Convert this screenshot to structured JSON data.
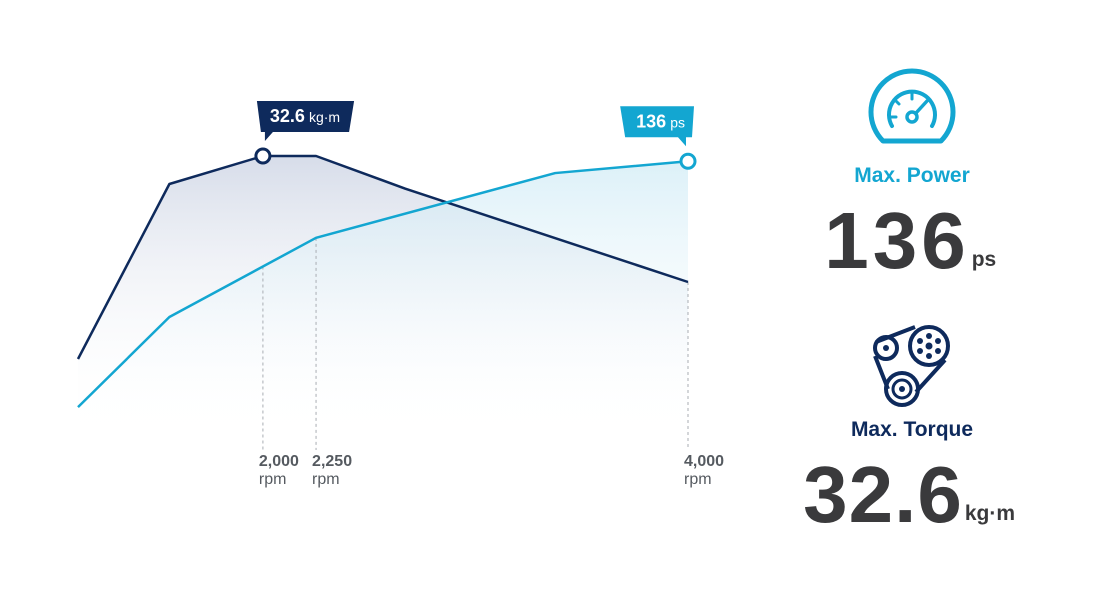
{
  "chart_data": {
    "type": "line",
    "xlim": [
      1130,
      4000
    ],
    "xticks": [
      {
        "value": 2000,
        "label": "2,000"
      },
      {
        "value": 2250,
        "label": "2,250"
      },
      {
        "value": 4000,
        "label": "4,000"
      }
    ],
    "x_unit": "rpm",
    "ylim": [
      20,
      35
    ],
    "y2lim": [
      70,
      150
    ],
    "series": [
      {
        "name": "Max. Torque",
        "unit": "kg·m",
        "max": 32.6,
        "color": "#0e2a5c",
        "x": [
          1130,
          1560,
          2000,
          2250,
          2670,
          4000
        ],
        "values": [
          23.9,
          31.4,
          32.6,
          32.6,
          31.2,
          27.2
        ]
      },
      {
        "name": "Max. Power",
        "unit": "ps",
        "max": 136,
        "color": "#13a6d1",
        "axis": "y2",
        "x": [
          1130,
          1560,
          2250,
          3375,
          4000
        ],
        "values": [
          79.8,
          100.4,
          118.5,
          133.3,
          136
        ]
      }
    ]
  }
}
